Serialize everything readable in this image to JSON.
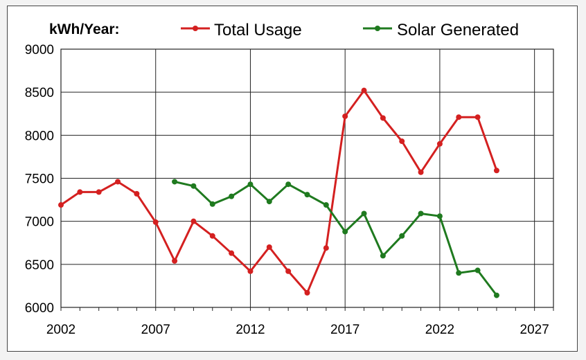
{
  "chart_data": {
    "type": "line",
    "title": "kWh/Year:",
    "xlabel": "",
    "ylabel": "",
    "xlim": [
      2002,
      2028
    ],
    "ylim": [
      6000,
      9000
    ],
    "xticks": [
      2002,
      2007,
      2012,
      2017,
      2022,
      2027
    ],
    "yticks": [
      6000,
      6500,
      7000,
      7500,
      8000,
      8500,
      9000
    ],
    "grid": true,
    "legend_position": "top",
    "series": [
      {
        "name": "Total Usage",
        "color": "#d42020",
        "x": [
          2002,
          2003,
          2004,
          2005,
          2006,
          2007,
          2008,
          2009,
          2010,
          2011,
          2012,
          2013,
          2014,
          2015,
          2016,
          2017,
          2018,
          2019,
          2020,
          2021,
          2022,
          2023,
          2024,
          2025
        ],
        "y": [
          7190,
          7340,
          7340,
          7460,
          7320,
          6990,
          6540,
          7000,
          6830,
          6630,
          6420,
          6700,
          6420,
          6170,
          6690,
          8220,
          8520,
          8200,
          7930,
          7570,
          7900,
          8210,
          8210,
          7590
        ]
      },
      {
        "name": "Solar Generated",
        "color": "#1f7a1f",
        "x": [
          2008,
          2009,
          2010,
          2011,
          2012,
          2013,
          2014,
          2015,
          2016,
          2017,
          2018,
          2019,
          2020,
          2021,
          2022,
          2023,
          2024,
          2025
        ],
        "y": [
          7460,
          7410,
          7200,
          7290,
          7430,
          7230,
          7430,
          7310,
          7190,
          6880,
          7090,
          6600,
          6830,
          7090,
          7060,
          6400,
          6430,
          6140
        ]
      }
    ]
  }
}
